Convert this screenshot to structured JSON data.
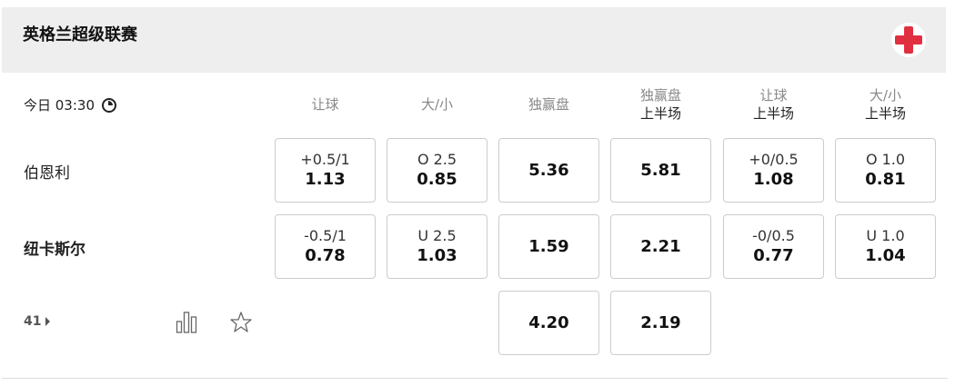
{
  "league": {
    "title": "英格兰超级联赛",
    "flag_icon": "england-flag-icon",
    "flag_color": "#e0303f"
  },
  "match": {
    "time": "今日 03:30",
    "more_count": "41"
  },
  "columns": [
    {
      "label": "让球",
      "sub": ""
    },
    {
      "label": "大/小",
      "sub": ""
    },
    {
      "label": "独赢盘",
      "sub": ""
    },
    {
      "label": "独赢盘",
      "sub": "上半场"
    },
    {
      "label": "让球",
      "sub": "上半场"
    },
    {
      "label": "大/小",
      "sub": "上半场"
    }
  ],
  "rows": [
    {
      "team": "伯恩利",
      "bold": false,
      "cells": [
        {
          "line": "+0.5/1",
          "odds": "1.13"
        },
        {
          "line": "O 2.5",
          "odds": "0.85"
        },
        {
          "line": "",
          "odds": "5.36"
        },
        {
          "line": "",
          "odds": "5.81"
        },
        {
          "line": "+0/0.5",
          "odds": "1.08"
        },
        {
          "line": "O 1.0",
          "odds": "0.81"
        }
      ]
    },
    {
      "team": "纽卡斯尔",
      "bold": true,
      "cells": [
        {
          "line": "-0.5/1",
          "odds": "0.78"
        },
        {
          "line": "U 2.5",
          "odds": "1.03"
        },
        {
          "line": "",
          "odds": "1.59"
        },
        {
          "line": "",
          "odds": "2.21"
        },
        {
          "line": "-0/0.5",
          "odds": "0.77"
        },
        {
          "line": "U 1.0",
          "odds": "1.04"
        }
      ]
    },
    {
      "team": "",
      "bold": false,
      "cells": [
        null,
        null,
        {
          "line": "",
          "odds": "4.20"
        },
        {
          "line": "",
          "odds": "2.19"
        },
        null,
        null
      ]
    }
  ]
}
